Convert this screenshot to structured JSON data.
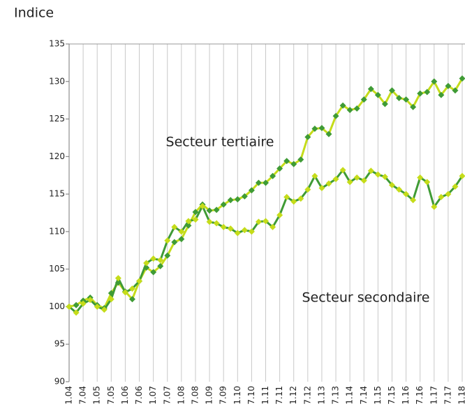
{
  "chart_data": {
    "type": "line",
    "y_label": "Indice",
    "categories": [
      "1.04",
      null,
      "7.04",
      null,
      "1.05",
      null,
      "7.05",
      null,
      "1.06",
      null,
      "7.06",
      null,
      "1.07",
      null,
      "7.07",
      null,
      "1.08",
      null,
      "7.08",
      null,
      "1.09",
      null,
      "7.09",
      null,
      "1.10",
      null,
      "7.10",
      null,
      "1.11",
      null,
      "7.11",
      null,
      "1.12",
      null,
      "7.12",
      null,
      "1.13",
      null,
      "7.13",
      null,
      "1.14",
      null,
      "7.14",
      null,
      "1.15",
      null,
      "7.15",
      null,
      "1.16",
      null,
      "7.16",
      null,
      "1.17",
      null,
      "7.17",
      null,
      "1.18"
    ],
    "series": [
      {
        "name": "Secteur tertiaire",
        "color": "#3f9b35",
        "line_color": "#c5dc1a",
        "values": [
          100,
          100.2,
          100.8,
          101.2,
          100.2,
          99.8,
          101.8,
          103.2,
          102,
          101,
          103.4,
          105.2,
          104.6,
          105.4,
          106.8,
          108.6,
          109,
          110.8,
          112.6,
          113.6,
          112.8,
          112.9,
          113.6,
          114.2,
          114.3,
          114.7,
          115.5,
          116.5,
          116.5,
          117.4,
          118.4,
          119.4,
          119.0,
          119.6,
          122.6,
          123.7,
          123.8,
          123.0,
          125.4,
          126.8,
          126.2,
          126.4,
          127.6,
          129.0,
          128.2,
          127.0,
          128.8,
          127.8,
          127.6,
          126.6,
          128.4,
          128.6,
          130.0,
          128.2,
          129.4,
          128.8,
          130.4
        ]
      },
      {
        "name": "Secteur secondaire",
        "color": "#c5dc1a",
        "line_color": "#3f9b35",
        "values": [
          100,
          99.2,
          100.4,
          100.9,
          100.0,
          99.6,
          101.0,
          103.8,
          101.9,
          102.4,
          103.4,
          105.8,
          106.4,
          106.2,
          108.8,
          110.6,
          110.0,
          111.4,
          111.6,
          113.4,
          111.3,
          111.1,
          110.6,
          110.4,
          109.8,
          110.2,
          110.0,
          111.3,
          111.4,
          110.6,
          112.2,
          114.6,
          114.0,
          114.4,
          115.6,
          117.4,
          115.8,
          116.4,
          117.0,
          118.2,
          116.6,
          117.2,
          116.8,
          118.1,
          117.6,
          117.3,
          116.2,
          115.6,
          115.0,
          114.2,
          117.2,
          116.6,
          113.3,
          114.6,
          115.0,
          116.0,
          117.4
        ]
      }
    ],
    "ylim": [
      90,
      135
    ],
    "yticks": [
      90,
      95,
      100,
      105,
      110,
      115,
      120,
      125,
      130,
      135
    ],
    "grid": true
  }
}
